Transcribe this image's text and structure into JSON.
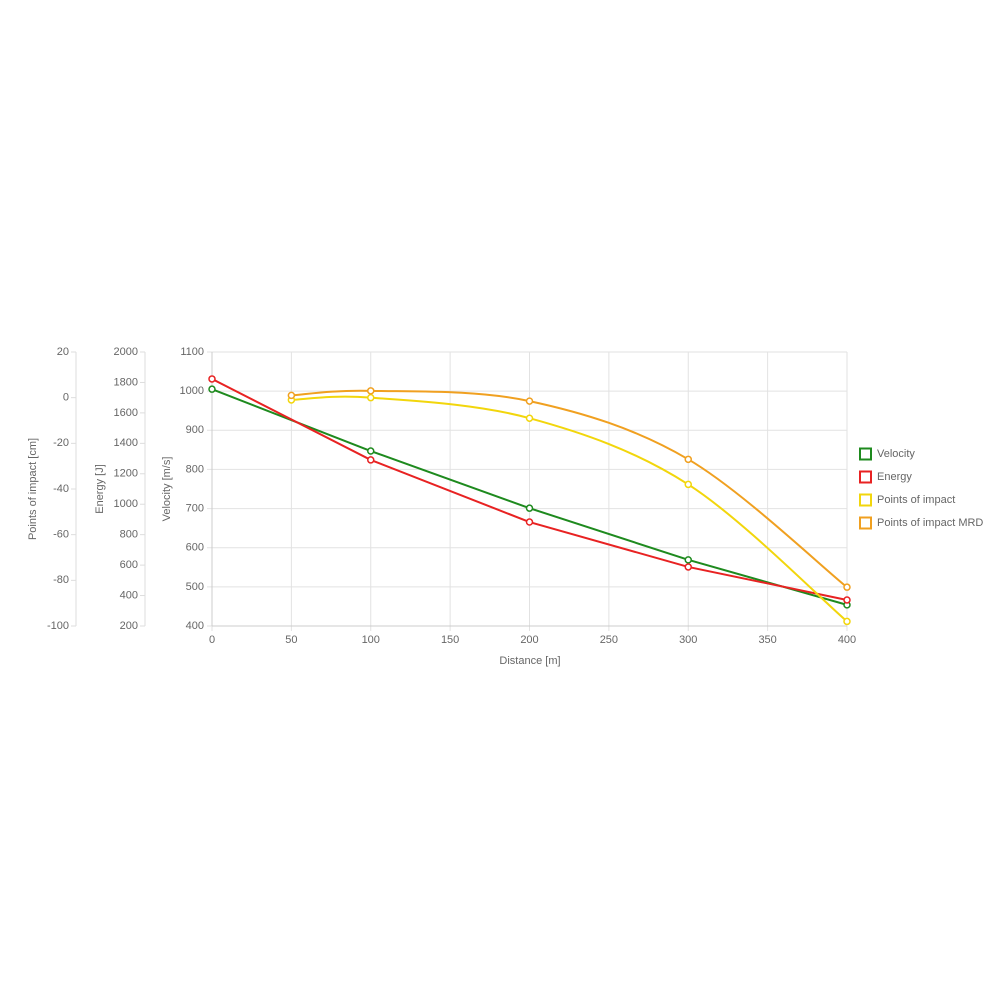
{
  "chart_data": {
    "type": "line",
    "xlabel": "Distance [m]",
    "ylabel": "Velocity [m/s]",
    "y2label": "Energy [J]",
    "y3label": "Points of impact [cm]",
    "xlim": [
      0,
      400
    ],
    "xticks": [
      0,
      50,
      100,
      150,
      200,
      250,
      300,
      350,
      400
    ],
    "ylim": [
      400,
      1100
    ],
    "yticks": [
      400,
      500,
      600,
      700,
      800,
      900,
      1000,
      1100
    ],
    "y2lim": [
      200,
      2000
    ],
    "y2ticks": [
      200,
      400,
      600,
      800,
      1000,
      1200,
      1400,
      1600,
      1800,
      2000
    ],
    "y3lim": [
      -100,
      20
    ],
    "y3ticks": [
      -100,
      -80,
      -60,
      -40,
      -20,
      0,
      20
    ],
    "grid": true,
    "legend": "right",
    "series": [
      {
        "name": "Velocity",
        "color": "#1e8a1e",
        "axis": "y",
        "smooth": false,
        "x": [
          0,
          100,
          200,
          300,
          400
        ],
        "values": [
          1005,
          847,
          701,
          569,
          454
        ]
      },
      {
        "name": "Energy",
        "color": "#e82222",
        "axis": "y2",
        "smooth": false,
        "x": [
          0,
          100,
          200,
          300,
          400
        ],
        "values": [
          1823,
          1291,
          883,
          588,
          371
        ]
      },
      {
        "name": "Points of impact",
        "color": "#f2d60c",
        "axis": "y3",
        "smooth": true,
        "x": [
          50,
          100,
          200,
          300,
          400
        ],
        "values": [
          -1,
          0,
          -9,
          -38,
          -98
        ]
      },
      {
        "name": "Points of impact MRD",
        "color": "#f0a020",
        "axis": "y3",
        "smooth": true,
        "x": [
          50,
          100,
          200,
          300,
          400
        ],
        "values": [
          1,
          3,
          -1.5,
          -27,
          -83
        ]
      }
    ]
  }
}
